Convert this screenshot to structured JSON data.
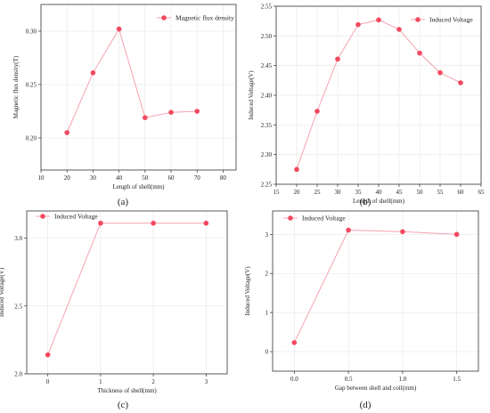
{
  "accent_color": "#f2495f",
  "line_color": "#f5a3b0",
  "chart_data": [
    {
      "type": "line",
      "caption": "(a)",
      "x": [
        20,
        30,
        40,
        50,
        60,
        70
      ],
      "series": [
        {
          "name": "Magnetic flux density",
          "values": [
            0.205,
            0.261,
            0.302,
            0.219,
            0.224,
            0.225
          ]
        }
      ],
      "xlabel": "Length of shell(mm)",
      "ylabel": "Magnetic flux density(T)",
      "xlim": [
        10,
        85
      ],
      "ylim": [
        0.17,
        0.325
      ],
      "xticks": [
        10,
        20,
        30,
        40,
        50,
        60,
        70,
        80
      ],
      "xtick_labels": [
        "10",
        "20",
        "30",
        "40",
        "50",
        "60",
        "70",
        "80"
      ],
      "yticks": [
        0.2,
        0.25,
        0.3
      ],
      "ytick_labels": [
        "0.20",
        "0.25",
        "0.30"
      ],
      "grid": true,
      "legend": "top-right"
    },
    {
      "type": "line",
      "caption": "(b)",
      "x": [
        20,
        25,
        30,
        35,
        40,
        45,
        50,
        55,
        60
      ],
      "series": [
        {
          "name": "Induced Voltage",
          "values": [
            2.275,
            2.373,
            2.461,
            2.519,
            2.527,
            2.511,
            2.471,
            2.438,
            2.421
          ]
        }
      ],
      "xlabel": "Length of shell(mm)",
      "ylabel": "Induced Voltage(V)",
      "xlim": [
        15,
        65
      ],
      "ylim": [
        2.25,
        2.55
      ],
      "xticks": [
        15,
        20,
        25,
        30,
        35,
        40,
        45,
        50,
        55,
        60,
        65
      ],
      "xtick_labels": [
        "15",
        "20",
        "25",
        "30",
        "35",
        "40",
        "45",
        "50",
        "55",
        "60",
        "65"
      ],
      "yticks": [
        2.25,
        2.3,
        2.35,
        2.4,
        2.45,
        2.5,
        2.55
      ],
      "ytick_labels": [
        "2.25",
        "2.30",
        "2.35",
        "2.40",
        "2.45",
        "2.50",
        "2.55"
      ],
      "grid": true,
      "legend": "top-right"
    },
    {
      "type": "line",
      "caption": "(c)",
      "x": [
        0,
        1,
        2,
        3
      ],
      "series": [
        {
          "name": "Induced Voltage",
          "values": [
            2.14,
            3.11,
            3.11,
            3.11
          ]
        }
      ],
      "xlabel": "Thickness of shell(mm)",
      "ylabel": "Induced Voltage(V)",
      "xlim": [
        -0.4,
        3.4
      ],
      "ylim": [
        2.0,
        3.2
      ],
      "xticks": [
        0,
        1,
        2,
        3
      ],
      "xtick_labels": [
        "0",
        "1",
        "2",
        "3"
      ],
      "yticks": [
        2.0,
        2.5,
        3.0
      ],
      "ytick_labels": [
        "2.0",
        "2.5",
        "3.0"
      ],
      "grid": true,
      "legend": "top-left"
    },
    {
      "type": "line",
      "caption": "(d)",
      "x": [
        0.0,
        0.5,
        1.0,
        1.5
      ],
      "series": [
        {
          "name": "Induced Voltage",
          "values": [
            0.23,
            3.11,
            3.07,
            3.0
          ]
        }
      ],
      "xlabel": "Gap between shell and coil(mm)",
      "ylabel": "Induced Voltage(V)",
      "xlim": [
        -0.2,
        1.7
      ],
      "ylim": [
        -0.5,
        3.6
      ],
      "xticks": [
        0.0,
        0.5,
        1.0,
        1.5
      ],
      "xtick_labels": [
        "0.0",
        "0.5",
        "1.0",
        "1.5"
      ],
      "yticks": [
        0,
        1,
        2,
        3
      ],
      "ytick_labels": [
        "0",
        "1",
        "2",
        "3"
      ],
      "grid": true,
      "legend": "top-left"
    }
  ]
}
